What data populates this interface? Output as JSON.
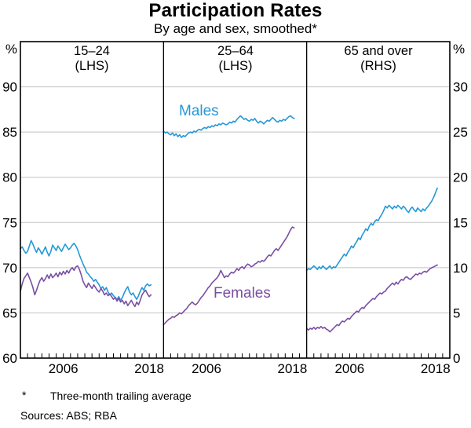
{
  "title": "Participation Rates",
  "subtitle": "By age and sex, smoothed*",
  "footnote": {
    "marker": "*",
    "text": "Three-month trailing average"
  },
  "sources": "Sources: ABS; RBA",
  "colors": {
    "males": "#2598d6",
    "females": "#7a4fa3",
    "grid": "#c3c3c3",
    "frame": "#000000",
    "text": "#000000"
  },
  "axes": {
    "left_unit": "%",
    "right_unit": "%",
    "left_ticks": [
      90,
      85,
      80,
      75,
      70,
      65,
      60
    ],
    "right_ticks": [
      30,
      25,
      20,
      15,
      10,
      5,
      0
    ],
    "left_range": [
      60,
      95
    ],
    "right_range": [
      0,
      35
    ],
    "x_range": [
      2000,
      2020
    ],
    "x_labeled_years": [
      2006,
      2018
    ],
    "x_minor_step_years": 1
  },
  "chart_data": {
    "type": "line",
    "x_start": 2000.0,
    "x_step": 0.25,
    "panels": [
      {
        "label": "15–24",
        "axis": "(LHS)",
        "scale": "left",
        "series": [
          {
            "name": "Males",
            "color_key": "males",
            "values": [
              72.1,
              72.3,
              71.9,
              71.6,
              71.8,
              72.4,
              73.0,
              72.6,
              72.1,
              71.7,
              72.2,
              71.9,
              71.5,
              71.9,
              72.3,
              71.7,
              71.3,
              71.8,
              72.5,
              72.2,
              71.9,
              72.4,
              72.1,
              71.8,
              72.2,
              72.6,
              72.3,
              72.0,
              72.2,
              72.5,
              72.7,
              72.4,
              72.0,
              71.4,
              70.9,
              70.4,
              70.0,
              69.5,
              69.3,
              69.0,
              68.8,
              68.5,
              68.7,
              68.4,
              68.1,
              67.7,
              67.9,
              67.5,
              67.8,
              67.3,
              67.0,
              67.2,
              66.9,
              66.7,
              66.5,
              66.8,
              66.4,
              66.7,
              67.2,
              67.6,
              67.9,
              67.3,
              67.0,
              67.2,
              66.8,
              66.5,
              66.9,
              67.4,
              67.8,
              67.5,
              68.0,
              68.2,
              68.0,
              68.1
            ]
          },
          {
            "name": "Females",
            "color_key": "females",
            "values": [
              67.4,
              68.2,
              68.8,
              69.1,
              69.4,
              68.9,
              68.4,
              67.8,
              67.0,
              67.5,
              68.1,
              68.6,
              68.9,
              68.5,
              68.8,
              69.2,
              68.8,
              69.3,
              68.9,
              69.1,
              69.4,
              69.0,
              69.5,
              69.2,
              69.6,
              69.3,
              69.7,
              69.4,
              69.8,
              70.0,
              69.7,
              70.1,
              70.2,
              69.8,
              69.2,
              68.5,
              68.1,
              67.8,
              68.3,
              68.0,
              67.7,
              68.1,
              67.8,
              67.5,
              67.3,
              67.7,
              67.4,
              67.0,
              67.2,
              66.9,
              67.1,
              66.8,
              66.5,
              66.7,
              66.3,
              66.6,
              66.2,
              66.4,
              66.0,
              66.3,
              65.8,
              66.1,
              66.4,
              66.0,
              65.7,
              66.2,
              65.9,
              66.4,
              67.0,
              67.3,
              67.5,
              67.1,
              66.8,
              67.0
            ]
          }
        ]
      },
      {
        "label": "25–64",
        "axis": "(LHS)",
        "scale": "left",
        "series": [
          {
            "name": "Males",
            "color_key": "males",
            "values": [
              85.1,
              84.9,
              85.0,
              84.8,
              84.7,
              84.9,
              84.6,
              84.8,
              84.5,
              84.7,
              84.4,
              84.6,
              84.5,
              84.7,
              84.9,
              85.0,
              84.9,
              85.1,
              85.0,
              85.2,
              85.3,
              85.2,
              85.4,
              85.5,
              85.4,
              85.6,
              85.5,
              85.7,
              85.6,
              85.8,
              85.7,
              85.9,
              85.8,
              86.0,
              85.9,
              85.8,
              85.9,
              86.1,
              86.0,
              86.2,
              86.1,
              86.4,
              86.6,
              86.8,
              86.6,
              86.4,
              86.5,
              86.3,
              86.2,
              86.4,
              86.3,
              86.5,
              86.2,
              86.0,
              86.2,
              86.1,
              85.9,
              86.1,
              86.3,
              86.2,
              86.4,
              86.6,
              86.4,
              86.2,
              86.1,
              86.3,
              86.2,
              86.4,
              86.3,
              86.5,
              86.7,
              86.8,
              86.6,
              86.5
            ]
          },
          {
            "name": "Females",
            "color_key": "females",
            "values": [
              63.7,
              63.9,
              64.1,
              64.3,
              64.4,
              64.6,
              64.5,
              64.7,
              64.8,
              65.0,
              64.9,
              65.1,
              65.3,
              65.5,
              65.8,
              66.0,
              66.2,
              66.0,
              65.9,
              66.1,
              66.4,
              66.7,
              66.9,
              67.2,
              67.5,
              67.8,
              68.0,
              68.3,
              68.5,
              68.7,
              68.9,
              69.2,
              69.7,
              69.3,
              68.9,
              69.1,
              69.0,
              69.3,
              69.5,
              69.4,
              69.6,
              69.9,
              69.7,
              70.0,
              70.1,
              69.9,
              70.2,
              70.4,
              70.3,
              70.1,
              70.2,
              70.4,
              70.5,
              70.7,
              70.6,
              70.8,
              70.7,
              70.9,
              71.2,
              71.4,
              71.3,
              71.6,
              71.9,
              72.1,
              71.9,
              72.2,
              72.5,
              72.8,
              73.1,
              73.4,
              73.8,
              74.2,
              74.5,
              74.4
            ]
          }
        ]
      },
      {
        "label": "65 and over",
        "axis": "(RHS)",
        "scale": "right",
        "series": [
          {
            "name": "Males",
            "color_key": "males",
            "values": [
              9.7,
              9.9,
              9.8,
              10.0,
              10.2,
              10.0,
              9.8,
              10.1,
              9.9,
              10.2,
              10.0,
              9.8,
              10.0,
              10.2,
              9.9,
              10.1,
              10.0,
              10.3,
              10.6,
              10.9,
              11.2,
              11.5,
              11.3,
              11.7,
              12.0,
              12.4,
              12.2,
              12.6,
              12.9,
              13.3,
              13.1,
              13.6,
              13.9,
              14.3,
              14.1,
              14.6,
              14.9,
              14.7,
              15.1,
              15.3,
              15.2,
              15.6,
              15.9,
              16.3,
              16.8,
              16.6,
              16.9,
              16.7,
              16.5,
              16.8,
              16.6,
              16.9,
              16.7,
              16.5,
              16.8,
              16.6,
              16.3,
              16.1,
              16.5,
              16.7,
              16.4,
              16.2,
              16.6,
              16.4,
              16.2,
              16.5,
              16.3,
              16.6,
              16.8,
              17.1,
              17.4,
              17.8,
              18.3,
              18.8
            ]
          },
          {
            "name": "Females",
            "color_key": "females",
            "values": [
              3.3,
              3.1,
              3.3,
              3.2,
              3.4,
              3.2,
              3.4,
              3.3,
              3.5,
              3.3,
              3.4,
              3.2,
              3.1,
              2.9,
              3.1,
              3.3,
              3.5,
              3.7,
              3.6,
              3.9,
              4.1,
              4.0,
              4.2,
              4.4,
              4.3,
              4.6,
              4.8,
              5.0,
              5.2,
              5.1,
              5.4,
              5.6,
              5.5,
              5.8,
              6.0,
              6.2,
              6.4,
              6.6,
              6.5,
              6.8,
              7.0,
              7.2,
              7.1,
              7.3,
              7.4,
              7.7,
              7.9,
              8.1,
              8.3,
              8.1,
              8.4,
              8.2,
              8.5,
              8.7,
              8.6,
              8.9,
              9.0,
              8.8,
              8.7,
              8.9,
              9.1,
              9.3,
              9.2,
              9.4,
              9.3,
              9.5,
              9.6,
              9.5,
              9.7,
              9.9,
              10.0,
              10.1,
              10.2,
              10.3
            ]
          }
        ]
      }
    ]
  }
}
